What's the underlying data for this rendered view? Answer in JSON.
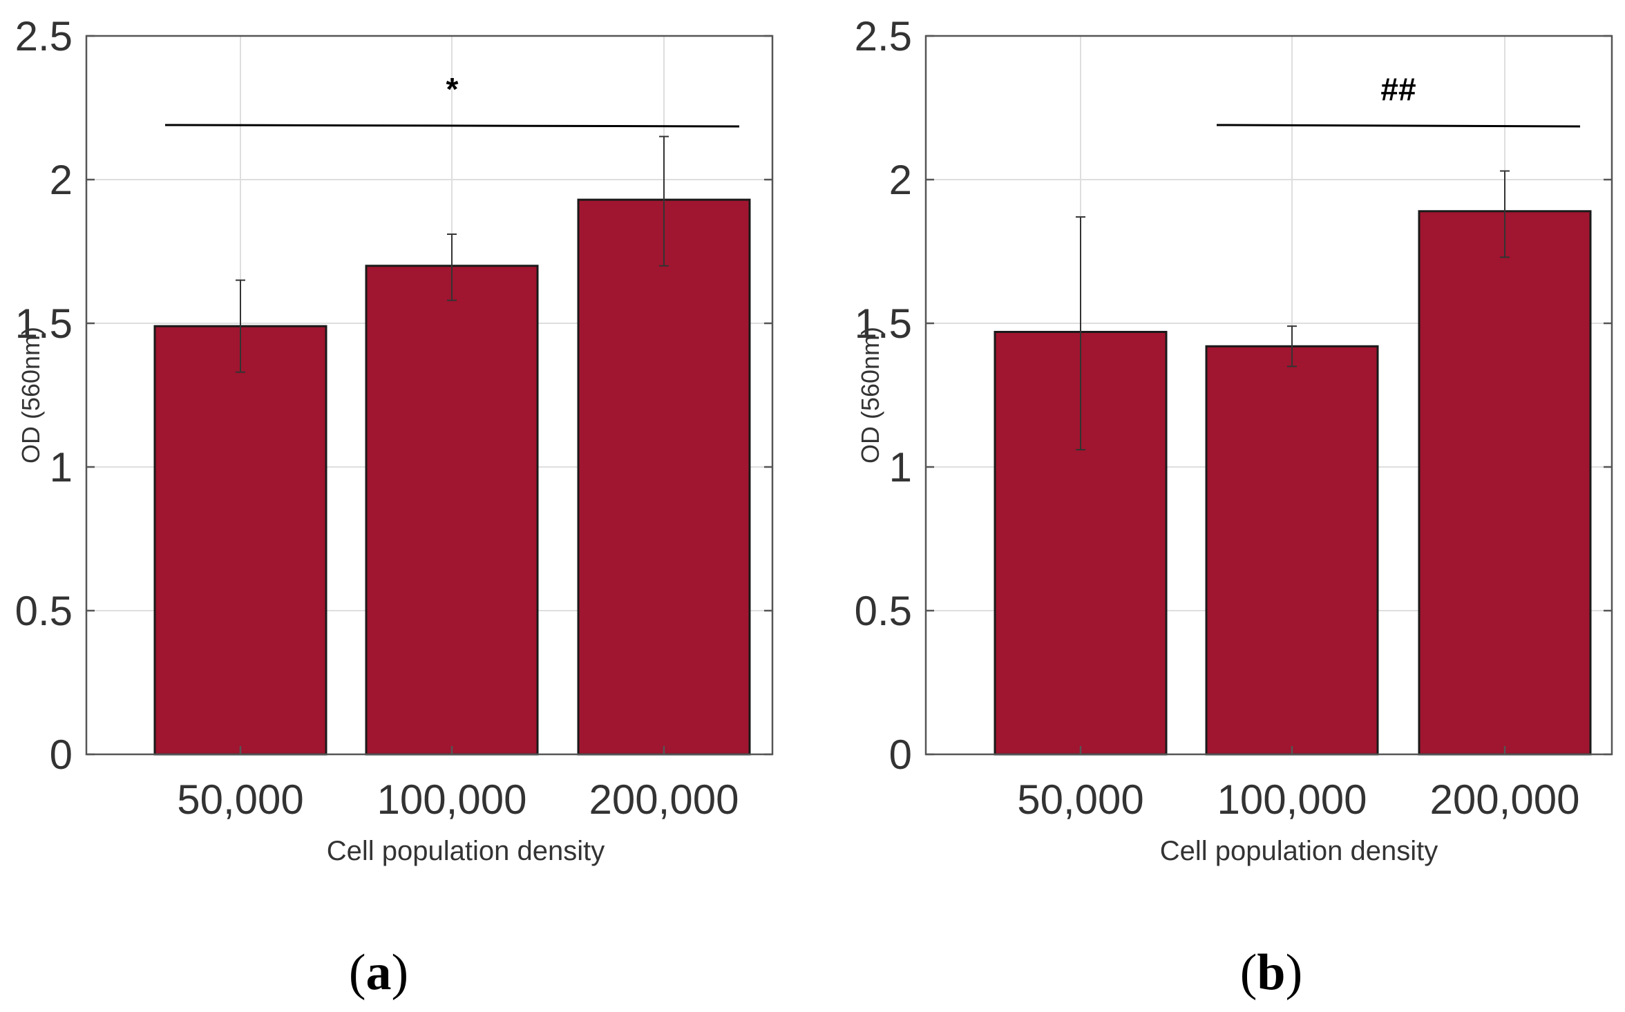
{
  "colors": {
    "bar": "#A0152F",
    "bar_edge": "#1a1a1a",
    "grid": "#dedede",
    "axis": "#555555"
  },
  "chart_data": [
    {
      "type": "bar",
      "panel_label": "a",
      "xlabel": "Cell population density",
      "ylabel": "OD (560nm)",
      "categories": [
        "50,000",
        "100,000",
        "200,000"
      ],
      "values": [
        1.49,
        1.7,
        1.93
      ],
      "error_low": [
        1.33,
        1.58,
        1.7
      ],
      "error_high": [
        1.65,
        1.81,
        2.15
      ],
      "ylim": [
        0,
        2.5
      ],
      "yticks": [
        0,
        0.5,
        1,
        1.5,
        2,
        2.5
      ],
      "ytick_labels": [
        "0",
        "0.5",
        "1",
        "1.5",
        "2",
        "2.5"
      ],
      "grid": true,
      "annotation": {
        "text": "*",
        "from_category": 0,
        "to_category": 2,
        "y": 2.19
      }
    },
    {
      "type": "bar",
      "panel_label": "b",
      "xlabel": "Cell population density",
      "ylabel": "OD (560nm)",
      "categories": [
        "50,000",
        "100,000",
        "200,000"
      ],
      "values": [
        1.47,
        1.42,
        1.89
      ],
      "error_low": [
        1.06,
        1.35,
        1.73
      ],
      "error_high": [
        1.87,
        1.49,
        2.03
      ],
      "ylim": [
        0,
        2.5
      ],
      "yticks": [
        0,
        0.5,
        1,
        1.5,
        2,
        2.5
      ],
      "ytick_labels": [
        "0",
        "0.5",
        "1",
        "1.5",
        "2",
        "2.5"
      ],
      "grid": true,
      "annotation": {
        "text": "##",
        "from_category": 1,
        "to_category": 2,
        "y": 2.19
      }
    }
  ]
}
